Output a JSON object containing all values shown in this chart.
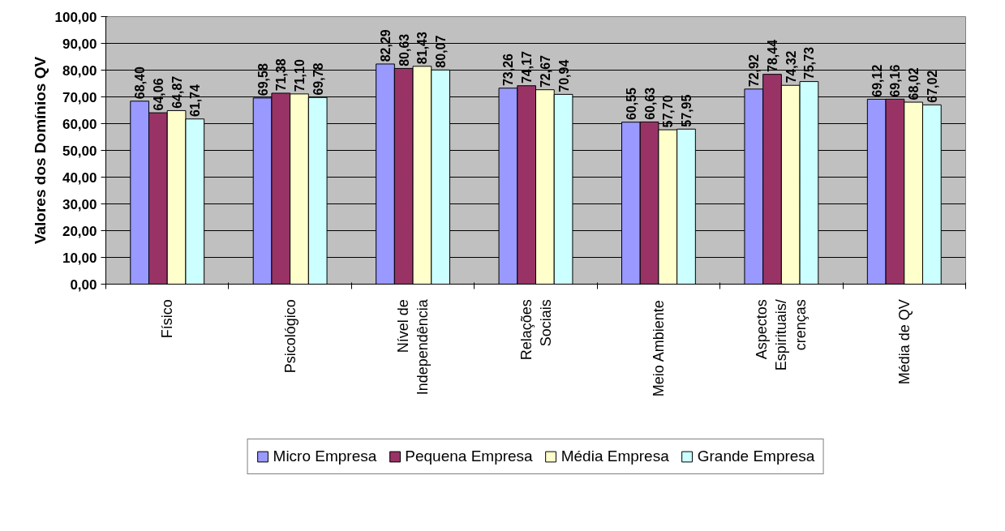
{
  "chart_data": {
    "type": "bar",
    "ylabel": "Valores dos Domínios QV",
    "categories": [
      "Físico",
      "Psicológico",
      "Nível de Independência",
      "Relações Sociais",
      "Meio Ambiente",
      "Aspectos Espirituais/ crenças",
      "Média de QV"
    ],
    "series": [
      {
        "name": "Micro Empresa",
        "color": "#9999ff",
        "values": [
          68.4,
          69.58,
          82.29,
          73.26,
          60.55,
          72.92,
          69.12
        ],
        "value_labels": [
          "68,40",
          "69,58",
          "82,29",
          "73,26",
          "60,55",
          "72,92",
          "69,12"
        ]
      },
      {
        "name": "Pequena Empresa",
        "color": "#993366",
        "values": [
          64.06,
          71.38,
          80.63,
          74.17,
          60.63,
          78.44,
          69.16
        ],
        "value_labels": [
          "64,06",
          "71,38",
          "80,63",
          "74,17",
          "60,63",
          "78,44",
          "69,16"
        ]
      },
      {
        "name": "Média Empresa",
        "color": "#ffffcc",
        "values": [
          64.87,
          71.1,
          81.43,
          72.67,
          57.7,
          74.32,
          68.02
        ],
        "value_labels": [
          "64,87",
          "71,10",
          "81,43",
          "72,67",
          "57,70",
          "74,32",
          "68,02"
        ]
      },
      {
        "name": "Grande Empresa",
        "color": "#ccffff",
        "values": [
          61.74,
          69.78,
          80.07,
          70.94,
          57.95,
          75.73,
          67.02
        ],
        "value_labels": [
          "61,74",
          "69,78",
          "80,07",
          "70,94",
          "57,95",
          "75,73",
          "67,02"
        ]
      }
    ],
    "ylim": [
      0,
      100
    ],
    "yticks": [
      {
        "value": 0,
        "label": "0,00"
      },
      {
        "value": 10,
        "label": "10,00"
      },
      {
        "value": 20,
        "label": "20,00"
      },
      {
        "value": 30,
        "label": "30,00"
      },
      {
        "value": 40,
        "label": "40,00"
      },
      {
        "value": 50,
        "label": "50,00"
      },
      {
        "value": 60,
        "label": "60,00"
      },
      {
        "value": 70,
        "label": "70,00"
      },
      {
        "value": 80,
        "label": "80,00"
      },
      {
        "value": 90,
        "label": "90,00"
      },
      {
        "value": 100,
        "label": "100,00"
      }
    ],
    "grid": "y",
    "legend": "bottom"
  }
}
